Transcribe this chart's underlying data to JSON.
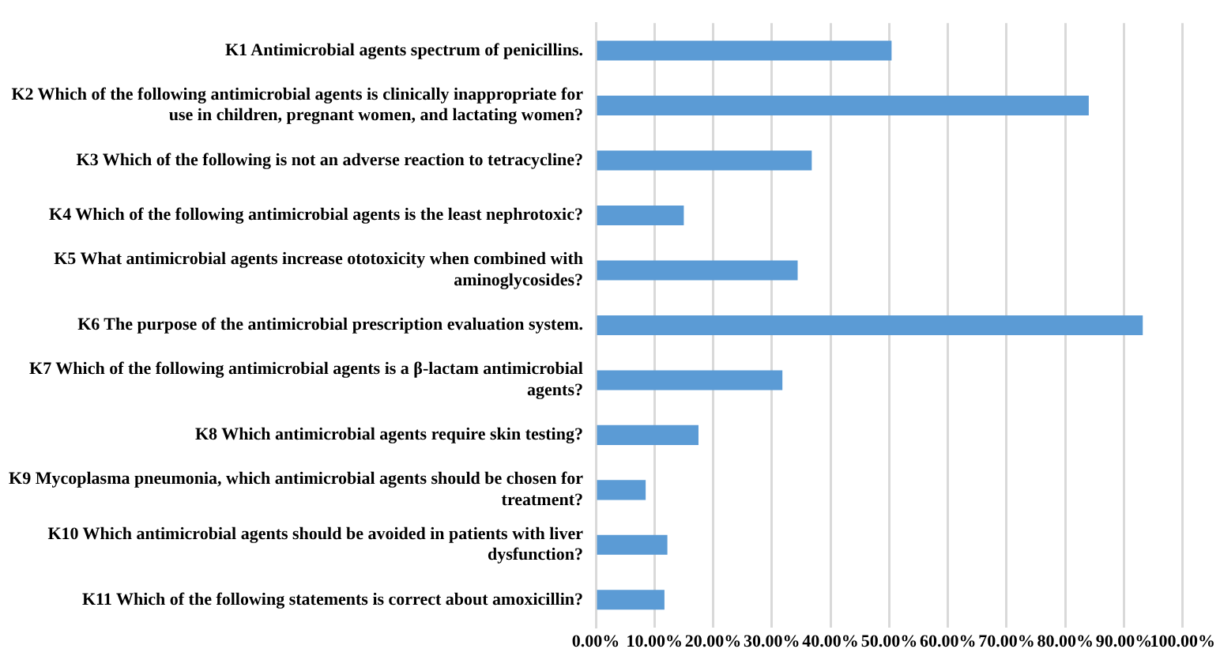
{
  "chart_data": {
    "type": "bar",
    "orientation": "horizontal",
    "categories": [
      "K1 Antimicrobial agents spectrum of penicillins.",
      "K2 Which of the following antimicrobial agents is clinically inappropriate for use in children, pregnant women, and lactating women?",
      "K3 Which of the following is not an adverse reaction to tetracycline?",
      "K4 Which of the following antimicrobial agents is the least nephrotoxic?",
      "K5 What antimicrobial agents increase ototoxicity when combined with aminoglycosides?",
      "K6 The purpose of the antimicrobial prescription evaluation system.",
      "K7 Which of the following antimicrobial agents is a β-lactam antimicrobial agents?",
      "K8 Which antimicrobial agents require skin testing?",
      "K9 Mycoplasma pneumonia, which antimicrobial agents should be chosen for treatment?",
      "K10 Which antimicrobial agents should be avoided in patients with liver dysfunction?",
      "K11 Which of the following statements is correct about amoxicillin?"
    ],
    "values": [
      50.4,
      84.0,
      36.8,
      15.0,
      34.4,
      93.2,
      31.8,
      17.5,
      8.5,
      12.2,
      11.7
    ],
    "color": "#5b9bd5",
    "xlim": [
      0,
      100
    ],
    "xticks": [
      {
        "value": 0,
        "label": "0.00%"
      },
      {
        "value": 10,
        "label": "10.00%"
      },
      {
        "value": 20,
        "label": "20.00%"
      },
      {
        "value": 30,
        "label": "30.00%"
      },
      {
        "value": 40,
        "label": "40.00%"
      },
      {
        "value": 50,
        "label": "50.00%"
      },
      {
        "value": 60,
        "label": "60.00%"
      },
      {
        "value": 70,
        "label": "70.00%"
      },
      {
        "value": 80,
        "label": "80.00%"
      },
      {
        "value": 90,
        "label": "90.00%"
      },
      {
        "value": 100,
        "label": "100.00%"
      }
    ],
    "grid": "x",
    "legend": false
  }
}
